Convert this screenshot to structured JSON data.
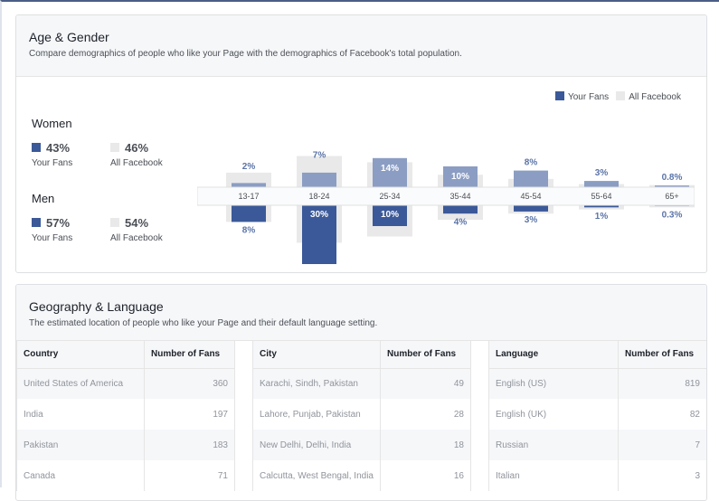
{
  "age_gender": {
    "title": "Age & Gender",
    "subtitle": "Compare demographics of people who like your Page with the demographics of Facebook's total population.",
    "legend": {
      "fans": "Your Fans",
      "all": "All Facebook"
    },
    "colors": {
      "fans_women": "#8b9dc3",
      "fans_men": "#3b5998",
      "all": "#e9e9e9",
      "label": "#5b74a8"
    },
    "women": {
      "label": "Women",
      "fans_pct": "43%",
      "fans_caption": "Your Fans",
      "all_pct": "46%",
      "all_caption": "All Facebook"
    },
    "men": {
      "label": "Men",
      "fans_pct": "57%",
      "fans_caption": "Your Fans",
      "all_pct": "54%",
      "all_caption": "All Facebook"
    }
  },
  "chart_data": {
    "type": "bar",
    "categories": [
      "13-17",
      "18-24",
      "25-34",
      "35-44",
      "45-54",
      "55-64",
      "65+"
    ],
    "series": [
      {
        "name": "Women - Your Fans",
        "values": [
          2,
          7,
          14,
          10,
          8,
          3,
          0.8
        ],
        "labels": [
          "2%",
          "7%",
          "14%",
          "10%",
          "8%",
          "3%",
          "0.8%"
        ]
      },
      {
        "name": "Women - All Facebook",
        "values": [
          7,
          15,
          12,
          6,
          4,
          1.5,
          1
        ]
      },
      {
        "name": "Men - Your Fans",
        "values": [
          8,
          30,
          10,
          4,
          3,
          1,
          0.3
        ],
        "labels": [
          "8%",
          "30%",
          "10%",
          "4%",
          "3%",
          "1%",
          "0.3%"
        ]
      },
      {
        "name": "Men - All Facebook",
        "values": [
          8,
          18,
          15,
          7,
          4,
          2,
          1
        ]
      }
    ]
  },
  "geo": {
    "title": "Geography & Language",
    "subtitle": "The estimated location of people who like your Page and their default language setting.",
    "tables": [
      {
        "headers": [
          "Country",
          "Number of Fans"
        ],
        "rows": [
          [
            "United States of America",
            "360"
          ],
          [
            "India",
            "197"
          ],
          [
            "Pakistan",
            "183"
          ],
          [
            "Canada",
            "71"
          ]
        ]
      },
      {
        "headers": [
          "City",
          "Number of Fans"
        ],
        "rows": [
          [
            "Karachi, Sindh, Pakistan",
            "49"
          ],
          [
            "Lahore, Punjab, Pakistan",
            "28"
          ],
          [
            "New Delhi, Delhi, India",
            "18"
          ],
          [
            "Calcutta, West Bengal, India",
            "16"
          ]
        ]
      },
      {
        "headers": [
          "Language",
          "Number of Fans"
        ],
        "rows": [
          [
            "English (US)",
            "819"
          ],
          [
            "English (UK)",
            "82"
          ],
          [
            "Russian",
            "7"
          ],
          [
            "Italian",
            "3"
          ]
        ]
      }
    ]
  }
}
